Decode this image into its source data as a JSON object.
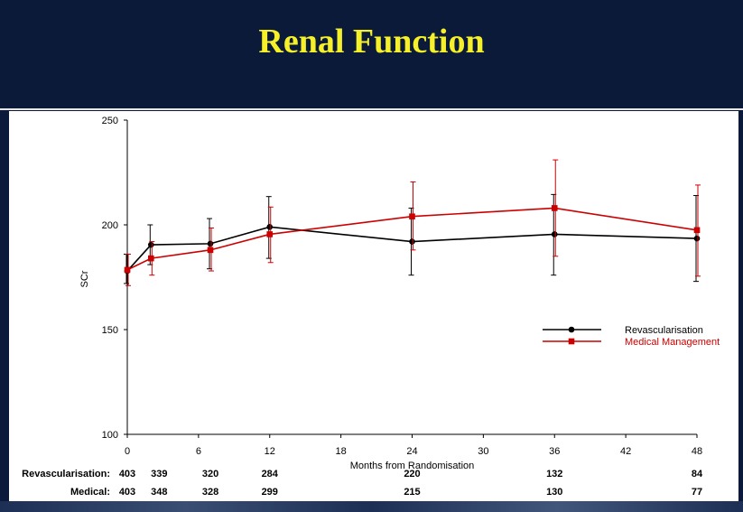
{
  "title": "Renal Function",
  "chart_data": {
    "type": "line",
    "ylabel": "SCr",
    "xlabel": "Months from Randomisation",
    "xlim": [
      0,
      48
    ],
    "ylim": [
      100,
      250
    ],
    "x_ticks": [
      0,
      6,
      12,
      18,
      24,
      30,
      36,
      42,
      48
    ],
    "y_ticks": [
      100,
      150,
      200,
      250
    ],
    "grid": false,
    "legend_position": "right",
    "series": [
      {
        "name": "Revascularisation",
        "color": "#000000",
        "marker": "circle",
        "x": [
          0,
          2,
          7,
          12,
          24,
          36,
          48
        ],
        "y": [
          178,
          190.5,
          191,
          199,
          192,
          195.5,
          193.5
        ],
        "error_low": [
          172,
          181,
          179,
          184,
          176,
          176,
          173
        ],
        "error_high": [
          186,
          200,
          203,
          213.5,
          208,
          214.5,
          214
        ]
      },
      {
        "name": "Medical Management",
        "color": "#cc0000",
        "marker": "square",
        "x": [
          0,
          2,
          7,
          12,
          24,
          36,
          48
        ],
        "y": [
          178.5,
          184,
          188,
          195.5,
          204,
          208,
          197.5
        ],
        "error_low": [
          171,
          176,
          178,
          182,
          188,
          185,
          175.5
        ],
        "error_high": [
          186,
          192,
          198.5,
          208.5,
          220.5,
          231,
          219
        ]
      }
    ]
  },
  "risk_table": [
    {
      "label": "Revascularisation:",
      "values": [
        {
          "x": 0,
          "n": "403"
        },
        {
          "x": 2,
          "n": "339"
        },
        {
          "x": 7,
          "n": "320"
        },
        {
          "x": 12,
          "n": "284"
        },
        {
          "x": 24,
          "n": "220"
        },
        {
          "x": 36,
          "n": "132"
        },
        {
          "x": 48,
          "n": "84"
        }
      ]
    },
    {
      "label": "Medical:",
      "values": [
        {
          "x": 0,
          "n": "403"
        },
        {
          "x": 2,
          "n": "348"
        },
        {
          "x": 7,
          "n": "328"
        },
        {
          "x": 12,
          "n": "299"
        },
        {
          "x": 24,
          "n": "215"
        },
        {
          "x": 36,
          "n": "130"
        },
        {
          "x": 48,
          "n": "77"
        }
      ]
    }
  ]
}
